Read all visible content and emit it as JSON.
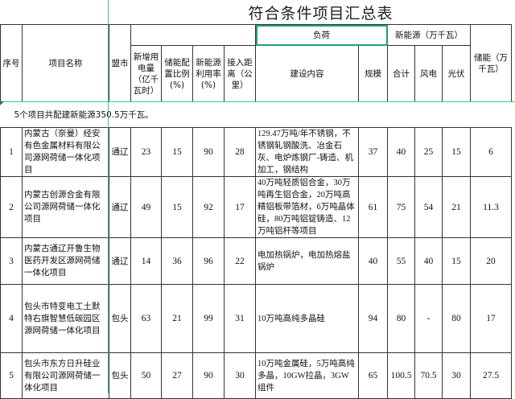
{
  "title": "符合条件项目汇总表",
  "headers": {
    "seq": "序号",
    "name": "项目名称",
    "city": "盟市",
    "load": "负荷",
    "new_energy": "新能源（万千瓦）",
    "power": "新增用电量（亿千瓦时）",
    "storage_ratio": "储能配置比例(%)",
    "utilization": "新能源利用率(%)",
    "distance": "接入距离（公里）",
    "content": "建设内容",
    "scale": "规模",
    "total": "合计",
    "wind": "风电",
    "pv": "光伏",
    "storage": "储能（万千瓦）"
  },
  "summary": "5个项目共配建新能源350.5万千瓦。",
  "rows": [
    {
      "seq": "1",
      "name": "内蒙古（奈曼）经安有色金属材料有限公司源网荷储一体化项目",
      "city": "通辽",
      "power": "23",
      "ratio": "15",
      "util": "90",
      "dist": "28",
      "content": "129.47万吨/年不锈钢，不锈钢轧钢酸洗、冶金石灰、电炉炼钢厂-铸造、机加工，钢结构",
      "scale": "37",
      "total": "40",
      "wind": "25",
      "pv": "15",
      "storage": "6"
    },
    {
      "seq": "2",
      "name": "内蒙古创源合金有限公司源网荷储一体化项目",
      "city": "通辽",
      "power": "49",
      "ratio": "15",
      "util": "92",
      "dist": "17",
      "content": "40万吨轻质铝合金，30万吨再生铝合金，20万吨高精铝板带箔材，6万吨晶体硅，80万吨铝锭铸造、12万吨铝杆等项目",
      "scale": "61",
      "total": "75",
      "wind": "54",
      "pv": "21",
      "storage": "11.3"
    },
    {
      "seq": "3",
      "name": "内蒙古通辽开鲁生物医药开发区源网荷储一体化项目",
      "city": "通辽",
      "power": "14",
      "ratio": "36",
      "util": "96",
      "dist": "22",
      "content": "电加热锅炉，电加热熔盐锅炉",
      "scale": "40",
      "total": "55",
      "wind": "40",
      "pv": "15",
      "storage": "20"
    },
    {
      "seq": "4",
      "name": "包头市特变电工土默特右旗智慧低碳园区源网荷储一体化项目",
      "city": "包头",
      "power": "63",
      "ratio": "21",
      "util": "99",
      "dist": "31",
      "content": "10万吨高纯多晶硅",
      "scale": "94",
      "total": "80",
      "wind": "-",
      "pv": "80",
      "storage": "17"
    },
    {
      "seq": "5",
      "name": "包头市东方日升硅业有限公司源网荷储一体化项目",
      "city": "包头",
      "power": "50",
      "ratio": "27",
      "util": "90",
      "dist": "30",
      "content": "10万吨金属硅，5万吨高纯多晶，10GW拉晶，3GW组件",
      "scale": "65",
      "total": "100.5",
      "wind": "70.5",
      "pv": "30",
      "storage": "27.5"
    }
  ]
}
